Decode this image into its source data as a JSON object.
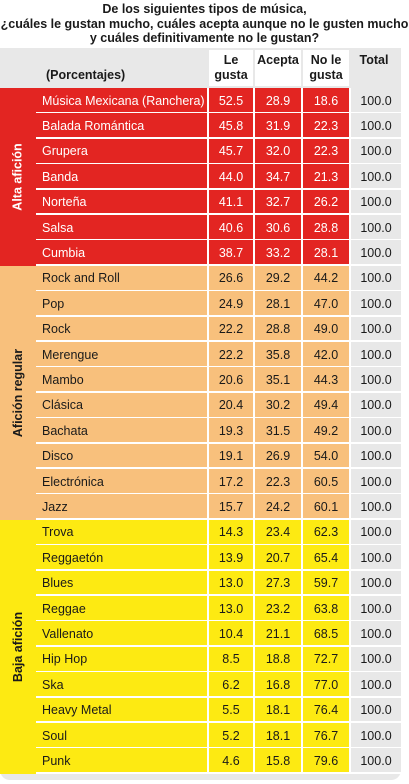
{
  "title": {
    "line1": "De los siguientes tipos de música,",
    "line2": "¿cuáles le gustan mucho, cuáles acepta aunque no le gusten mucho",
    "line3": "y cuáles definitivamente no le gustan?"
  },
  "header": {
    "row_label": "(Porcentajes)",
    "col1": [
      "Le",
      "gusta"
    ],
    "col2": "Acepta",
    "col3": [
      "No le",
      "gusta"
    ],
    "col4": "Total"
  },
  "colors": {
    "high": "#e32522",
    "regular": "#f8c07c",
    "low": "#fdea12",
    "total_column": "#e8e8e8",
    "header": "#ffffff"
  },
  "groups": [
    {
      "label": "Alta afición",
      "color": "#e32522",
      "rows": [
        {
          "name": "Música Mexicana (Ranchera)",
          "le_gusta": "52.5",
          "acepta": "28.9",
          "no_le_gusta": "18.6",
          "total": "100.0"
        },
        {
          "name": "Balada Romántica",
          "le_gusta": "45.8",
          "acepta": "31.9",
          "no_le_gusta": "22.3",
          "total": "100.0"
        },
        {
          "name": "Grupera",
          "le_gusta": "45.7",
          "acepta": "32.0",
          "no_le_gusta": "22.3",
          "total": "100.0"
        },
        {
          "name": "Banda",
          "le_gusta": "44.0",
          "acepta": "34.7",
          "no_le_gusta": "21.3",
          "total": "100.0"
        },
        {
          "name": "Norteña",
          "le_gusta": "41.1",
          "acepta": "32.7",
          "no_le_gusta": "26.2",
          "total": "100.0"
        },
        {
          "name": "Salsa",
          "le_gusta": "40.6",
          "acepta": "30.6",
          "no_le_gusta": "28.8",
          "total": "100.0"
        },
        {
          "name": "Cumbia",
          "le_gusta": "38.7",
          "acepta": "33.2",
          "no_le_gusta": "28.1",
          "total": "100.0"
        }
      ]
    },
    {
      "label": "Afición regular",
      "color": "#f8c07c",
      "rows": [
        {
          "name": "Rock and Roll",
          "le_gusta": "26.6",
          "acepta": "29.2",
          "no_le_gusta": "44.2",
          "total": "100.0"
        },
        {
          "name": "Pop",
          "le_gusta": "24.9",
          "acepta": "28.1",
          "no_le_gusta": "47.0",
          "total": "100.0"
        },
        {
          "name": "Rock",
          "le_gusta": "22.2",
          "acepta": "28.8",
          "no_le_gusta": "49.0",
          "total": "100.0"
        },
        {
          "name": "Merengue",
          "le_gusta": "22.2",
          "acepta": "35.8",
          "no_le_gusta": "42.0",
          "total": "100.0"
        },
        {
          "name": "Mambo",
          "le_gusta": "20.6",
          "acepta": "35.1",
          "no_le_gusta": "44.3",
          "total": "100.0"
        },
        {
          "name": "Clásica",
          "le_gusta": "20.4",
          "acepta": "30.2",
          "no_le_gusta": "49.4",
          "total": "100.0"
        },
        {
          "name": "Bachata",
          "le_gusta": "19.3",
          "acepta": "31.5",
          "no_le_gusta": "49.2",
          "total": "100.0"
        },
        {
          "name": "Disco",
          "le_gusta": "19.1",
          "acepta": "26.9",
          "no_le_gusta": "54.0",
          "total": "100.0"
        },
        {
          "name": "Electrónica",
          "le_gusta": "17.2",
          "acepta": "22.3",
          "no_le_gusta": "60.5",
          "total": "100.0"
        },
        {
          "name": "Jazz",
          "le_gusta": "15.7",
          "acepta": "24.2",
          "no_le_gusta": "60.1",
          "total": "100.0"
        }
      ]
    },
    {
      "label": "Baja afición",
      "color": "#fdea12",
      "rows": [
        {
          "name": "Trova",
          "le_gusta": "14.3",
          "acepta": "23.4",
          "no_le_gusta": "62.3",
          "total": "100.0"
        },
        {
          "name": "Reggaetón",
          "le_gusta": "13.9",
          "acepta": "20.7",
          "no_le_gusta": "65.4",
          "total": "100.0"
        },
        {
          "name": "Blues",
          "le_gusta": "13.0",
          "acepta": "27.3",
          "no_le_gusta": "59.7",
          "total": "100.0"
        },
        {
          "name": "Reggae",
          "le_gusta": "13.0",
          "acepta": "23.2",
          "no_le_gusta": "63.8",
          "total": "100.0"
        },
        {
          "name": "Vallenato",
          "le_gusta": "10.4",
          "acepta": "21.1",
          "no_le_gusta": "68.5",
          "total": "100.0"
        },
        {
          "name": "Hip Hop",
          "le_gusta": "8.5",
          "acepta": "18.8",
          "no_le_gusta": "72.7",
          "total": "100.0"
        },
        {
          "name": "Ska",
          "le_gusta": "6.2",
          "acepta": "16.8",
          "no_le_gusta": "77.0",
          "total": "100.0"
        },
        {
          "name": "Heavy Metal",
          "le_gusta": "5.5",
          "acepta": "18.1",
          "no_le_gusta": "76.4",
          "total": "100.0"
        },
        {
          "name": "Soul",
          "le_gusta": "5.2",
          "acepta": "18.1",
          "no_le_gusta": "76.7",
          "total": "100.0"
        },
        {
          "name": "Punk",
          "le_gusta": "4.6",
          "acepta": "15.8",
          "no_le_gusta": "79.6",
          "total": "100.0"
        }
      ]
    }
  ]
}
